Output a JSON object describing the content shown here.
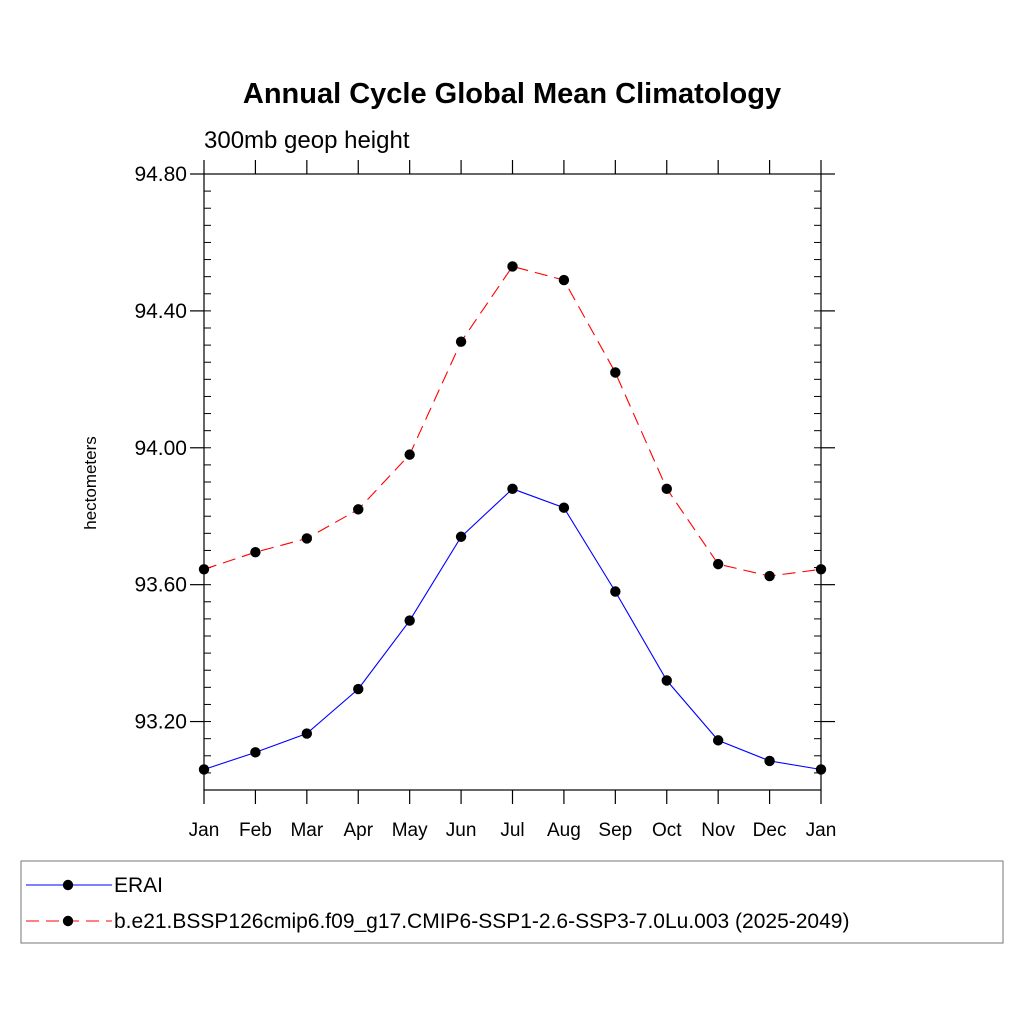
{
  "chart_data": {
    "type": "line",
    "title": "Annual Cycle Global Mean Climatology",
    "subtitle": "300mb geop height",
    "ylabel": "hectometers",
    "xlabel": "",
    "categories": [
      "Jan",
      "Feb",
      "Mar",
      "Apr",
      "May",
      "Jun",
      "Jul",
      "Aug",
      "Sep",
      "Oct",
      "Nov",
      "Dec",
      "Jan"
    ],
    "ylim": [
      93.0,
      94.8
    ],
    "yticks": [
      93.2,
      93.6,
      94.0,
      94.4,
      94.8
    ],
    "ytick_labels": [
      "93.20",
      "93.60",
      "94.00",
      "94.40",
      "94.80"
    ],
    "grid": false,
    "legend_position": "bottom",
    "series": [
      {
        "name": "ERAI",
        "color": "#0000ff",
        "dash": "solid",
        "marker": "filled-circle",
        "values": [
          93.06,
          93.11,
          93.165,
          93.295,
          93.495,
          93.74,
          93.88,
          93.825,
          93.58,
          93.32,
          93.145,
          93.085,
          93.06
        ]
      },
      {
        "name": "b.e21.BSSP126cmip6.f09_g17.CMIP6-SSP1-2.6-SSP3-7.0Lu.003 (2025-2049)",
        "color": "#ff0000",
        "dash": "dashed",
        "marker": "filled-circle",
        "values": [
          93.645,
          93.695,
          93.735,
          93.82,
          93.98,
          94.31,
          94.53,
          94.49,
          94.22,
          93.88,
          93.66,
          93.625,
          93.645
        ]
      }
    ]
  }
}
